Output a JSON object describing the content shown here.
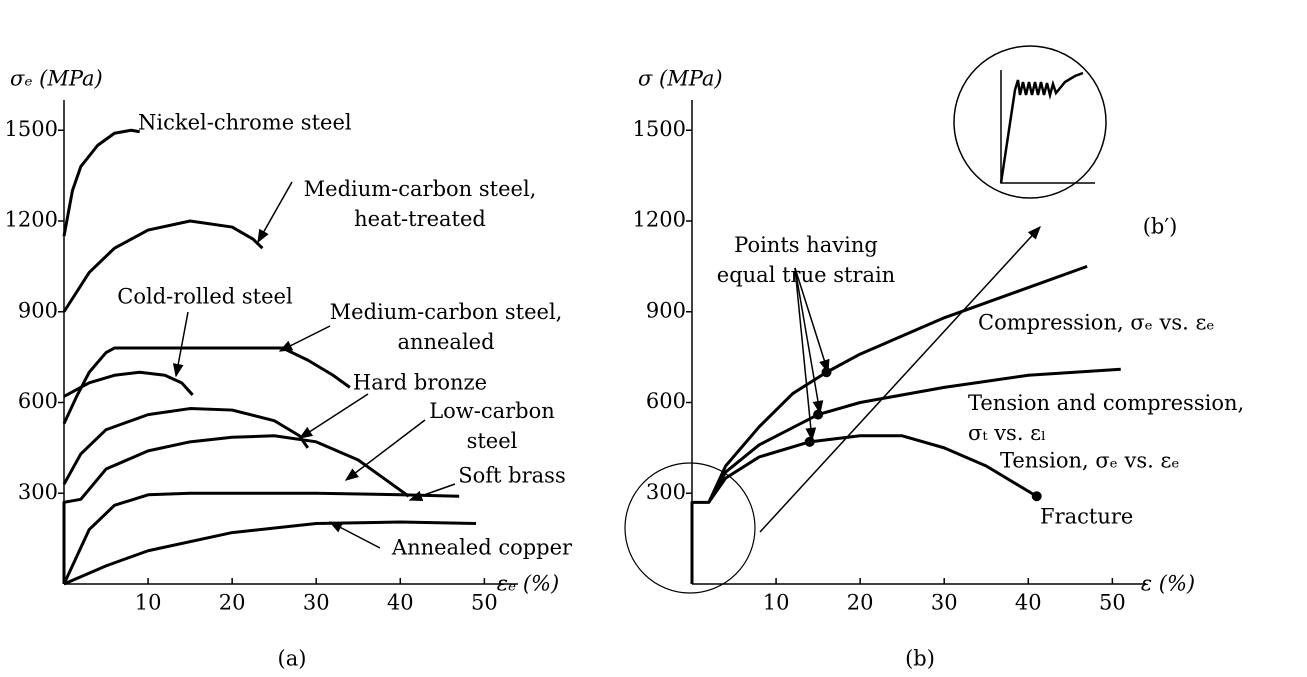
{
  "chart_data": [
    {
      "type": "line",
      "subtitle": "(a)",
      "y_label": "σₑ (MPa)",
      "x_label": "εₑ (%)",
      "xlim": [
        0,
        54
      ],
      "ylim": [
        0,
        1600
      ],
      "xticks": [
        10,
        20,
        30,
        40,
        50
      ],
      "yticks": [
        300,
        600,
        900,
        1200,
        1500
      ],
      "grid": false,
      "series": [
        {
          "name": "Nickel-chrome steel",
          "color": "#000000",
          "x": [
            0,
            1,
            2,
            4,
            6,
            8,
            9
          ],
          "values": [
            1150,
            1300,
            1380,
            1450,
            1490,
            1500,
            1495
          ]
        },
        {
          "name": "Medium-carbon steel,\nheat-treated",
          "color": "#000000",
          "x": [
            0,
            3,
            6,
            10,
            15,
            20,
            22.5,
            23.6
          ],
          "values": [
            900,
            1030,
            1110,
            1170,
            1200,
            1180,
            1140,
            1110
          ]
        },
        {
          "name": "Cold-rolled steel",
          "color": "#000000",
          "x": [
            0,
            3,
            6,
            9,
            12,
            14,
            15.3
          ],
          "values": [
            620,
            665,
            690,
            700,
            690,
            665,
            625
          ]
        },
        {
          "name": "Medium-carbon steel,\nannealed",
          "color": "#000000",
          "x": [
            0,
            1.5,
            3,
            5,
            6,
            26,
            29,
            32,
            34
          ],
          "values": [
            530,
            620,
            700,
            765,
            780,
            780,
            740,
            690,
            650
          ]
        },
        {
          "name": "Hard bronze",
          "color": "#000000",
          "x": [
            0,
            2,
            5,
            10,
            15,
            20,
            25,
            28,
            29
          ],
          "values": [
            330,
            430,
            510,
            560,
            580,
            575,
            540,
            490,
            450
          ]
        },
        {
          "name": "Low-carbon\nsteel",
          "color": "#000000",
          "x": [
            0,
            0,
            2,
            5,
            10,
            15,
            20,
            25,
            30,
            35,
            41
          ],
          "values": [
            0,
            270,
            280,
            380,
            440,
            470,
            485,
            490,
            470,
            410,
            290
          ]
        },
        {
          "name": "Soft brass",
          "color": "#000000",
          "x": [
            0,
            3,
            6,
            10,
            15,
            30,
            40,
            47
          ],
          "values": [
            0,
            180,
            260,
            295,
            300,
            300,
            295,
            290
          ]
        },
        {
          "name": "Annealed copper",
          "color": "#000000",
          "x": [
            0,
            5,
            10,
            20,
            30,
            40,
            49
          ],
          "values": [
            0,
            60,
            110,
            170,
            200,
            205,
            200
          ]
        }
      ]
    },
    {
      "type": "line",
      "subtitle": "(b)",
      "y_label": "σ (MPa)",
      "x_label": "ε (%)",
      "xlim": [
        0,
        54
      ],
      "ylim": [
        0,
        1600
      ],
      "xticks": [
        10,
        20,
        30,
        40,
        50
      ],
      "yticks": [
        300,
        600,
        900,
        1200,
        1500
      ],
      "grid": false,
      "series": [
        {
          "name": "Compression, σₑ vs. εₑ",
          "color": "#000000",
          "x": [
            0,
            0,
            2,
            4,
            8,
            12,
            16,
            20,
            30,
            40,
            47
          ],
          "values": [
            0,
            270,
            270,
            390,
            520,
            630,
            700,
            760,
            880,
            980,
            1050
          ]
        },
        {
          "name": "Tension and compression,\nσₜ vs. εₗ",
          "color": "#000000",
          "x": [
            2,
            4,
            8,
            15,
            20,
            30,
            40,
            51
          ],
          "values": [
            270,
            370,
            460,
            560,
            600,
            650,
            690,
            710
          ]
        },
        {
          "name": "Tension, σₑ vs. εₑ",
          "color": "#000000",
          "x": [
            2,
            4,
            8,
            14,
            20,
            25,
            30,
            35,
            41
          ],
          "values": [
            270,
            350,
            420,
            470,
            490,
            490,
            450,
            390,
            290
          ]
        }
      ],
      "points": {
        "x": [
          16,
          15,
          14,
          41
        ],
        "values": [
          700,
          560,
          470,
          290
        ]
      },
      "annotations": [
        "Points having\nequal true strain",
        "Fracture",
        "(b′)"
      ]
    }
  ]
}
